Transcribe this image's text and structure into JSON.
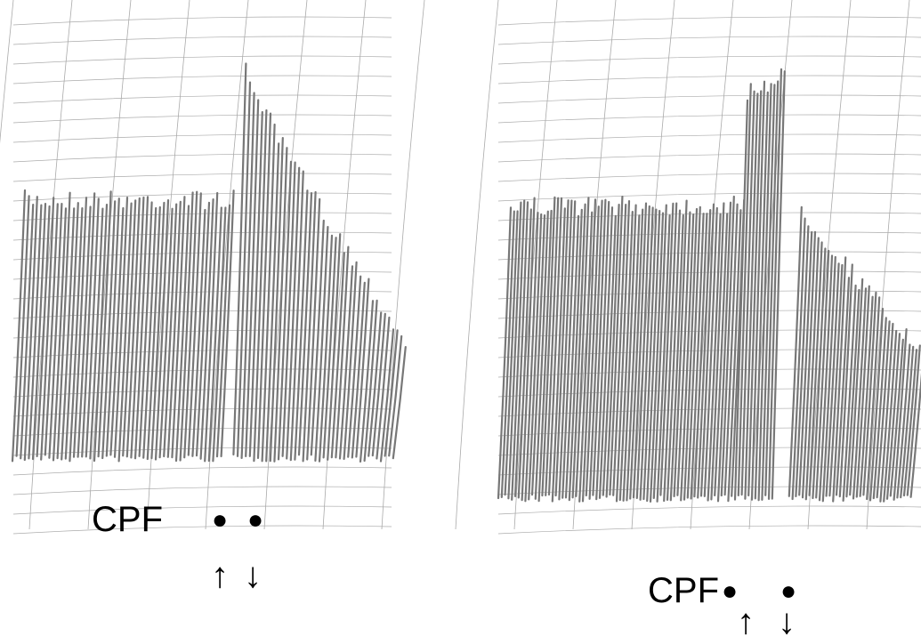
{
  "panels": [
    {
      "label": "CPF",
      "markers": [
        "●",
        "●"
      ],
      "arrows": [
        "↑",
        "↓"
      ]
    },
    {
      "label": "CPF",
      "markers": [
        "●",
        "●"
      ],
      "arrows": [
        "↑",
        "↓"
      ]
    }
  ]
}
